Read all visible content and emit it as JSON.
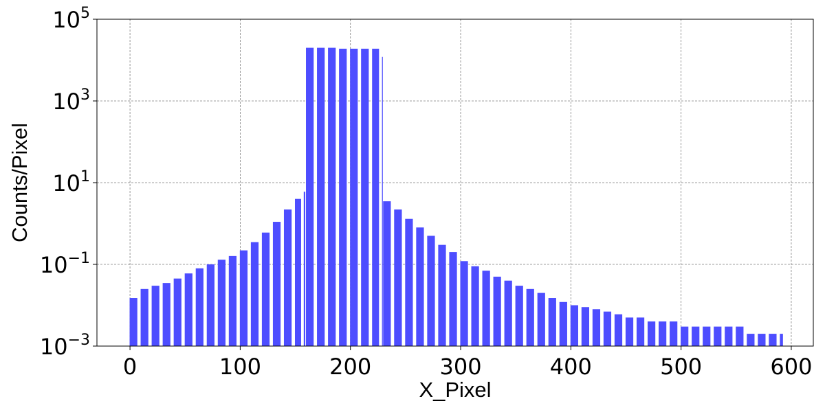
{
  "chart_data": {
    "type": "bar",
    "title": "",
    "xlabel": "X_Pixel",
    "ylabel": "Counts/Pixel",
    "xlim": [
      -30,
      620
    ],
    "ylim": [
      0.001,
      100000
    ],
    "yscale": "log",
    "grid": true,
    "xticks": [
      {
        "value": 0,
        "label": "0"
      },
      {
        "value": 100,
        "label": "100"
      },
      {
        "value": 200,
        "label": "200"
      },
      {
        "value": 300,
        "label": "300"
      },
      {
        "value": 400,
        "label": "400"
      },
      {
        "value": 500,
        "label": "500"
      },
      {
        "value": 600,
        "label": "600"
      }
    ],
    "yticks": [
      {
        "value": 0.001,
        "base": "10",
        "exp": "−3"
      },
      {
        "value": 0.1,
        "base": "10",
        "exp": "−1"
      },
      {
        "value": 10,
        "base": "10",
        "exp": "1"
      },
      {
        "value": 1000,
        "base": "10",
        "exp": "3"
      },
      {
        "value": 100000,
        "base": "10",
        "exp": "5"
      }
    ],
    "bar_color": "#4d4dff",
    "series": [
      {
        "x": [
          0,
          10,
          20,
          30,
          40,
          50,
          60,
          70,
          80,
          90,
          100,
          110,
          120,
          130,
          140,
          150,
          158,
          160,
          170,
          180,
          190,
          200,
          210,
          220,
          229,
          230,
          240,
          250,
          260,
          270,
          280,
          290,
          300,
          310,
          320,
          330,
          340,
          350,
          360,
          370,
          380,
          390,
          400,
          410,
          420,
          430,
          440,
          450,
          460,
          470,
          480,
          490,
          500,
          510,
          520,
          530,
          540,
          550,
          560,
          570,
          580,
          590
        ],
        "values": [
          0.015,
          0.025,
          0.03,
          0.035,
          0.045,
          0.06,
          0.08,
          0.1,
          0.13,
          0.16,
          0.22,
          0.35,
          0.6,
          1.1,
          2.2,
          4,
          6,
          20000,
          20000,
          20000,
          19000,
          19000,
          19000,
          19000,
          12000,
          3.5,
          2.2,
          1.3,
          0.8,
          0.5,
          0.3,
          0.2,
          0.12,
          0.09,
          0.07,
          0.05,
          0.04,
          0.03,
          0.025,
          0.02,
          0.015,
          0.012,
          0.01,
          0.009,
          0.008,
          0.007,
          0.006,
          0.005,
          0.005,
          0.004,
          0.004,
          0.004,
          0.003,
          0.003,
          0.003,
          0.003,
          0.003,
          0.003,
          0.002,
          0.002,
          0.002,
          0.002
        ]
      }
    ]
  }
}
